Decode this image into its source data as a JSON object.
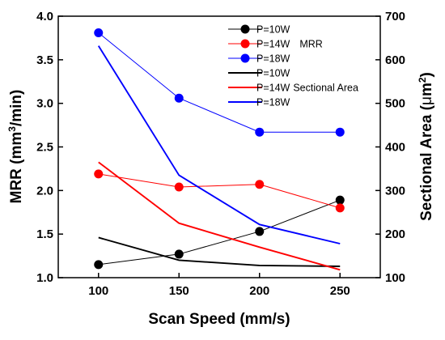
{
  "chart_data": {
    "type": "line",
    "title": "",
    "x": [
      100,
      150,
      200,
      250
    ],
    "xlabel": "Scan Speed (mm/s)",
    "xlim": [
      75,
      275
    ],
    "xticks": [
      100,
      150,
      200,
      250
    ],
    "ylabel_left": {
      "pre": "MRR (mm",
      "sup": "3",
      "post": "/min)"
    },
    "ylim_left": [
      1.0,
      4.0
    ],
    "yticks_left": [
      "1.0",
      "1.5",
      "2.0",
      "2.5",
      "3.0",
      "3.5",
      "4.0"
    ],
    "ylabel_right": {
      "pre": "Sectional Area (",
      "mu": "μ",
      "post": "m",
      "sup": "2",
      "close": ")"
    },
    "ylim_right": [
      100,
      700
    ],
    "yticks_right": [
      "100",
      "200",
      "300",
      "400",
      "500",
      "600",
      "700"
    ],
    "grid": false,
    "legend_position": "top-right",
    "legend_groups": {
      "mrr": "MRR",
      "area": "Sectional Area"
    },
    "series": [
      {
        "name": "P=10W",
        "group": "mrr",
        "axis": "left",
        "style": "line-marker",
        "color": "#000000",
        "values": [
          1.15,
          1.27,
          1.53,
          1.89
        ]
      },
      {
        "name": "P=14W",
        "group": "mrr",
        "axis": "left",
        "style": "line-marker",
        "color": "#ff0000",
        "values": [
          2.19,
          2.04,
          2.07,
          1.8
        ]
      },
      {
        "name": "P=18W",
        "group": "mrr",
        "axis": "left",
        "style": "line-marker",
        "color": "#0000ff",
        "values": [
          3.81,
          3.06,
          2.67,
          2.67
        ]
      },
      {
        "name": "P=10W",
        "group": "area",
        "axis": "right",
        "style": "line",
        "color": "#000000",
        "values": [
          192,
          140,
          128,
          126
        ]
      },
      {
        "name": "P=14W",
        "group": "area",
        "axis": "right",
        "style": "line",
        "color": "#ff0000",
        "values": [
          365,
          225,
          170,
          118
        ]
      },
      {
        "name": "P=18W",
        "group": "area",
        "axis": "right",
        "style": "line",
        "color": "#0000ff",
        "values": [
          632,
          335,
          222,
          178
        ]
      }
    ]
  }
}
